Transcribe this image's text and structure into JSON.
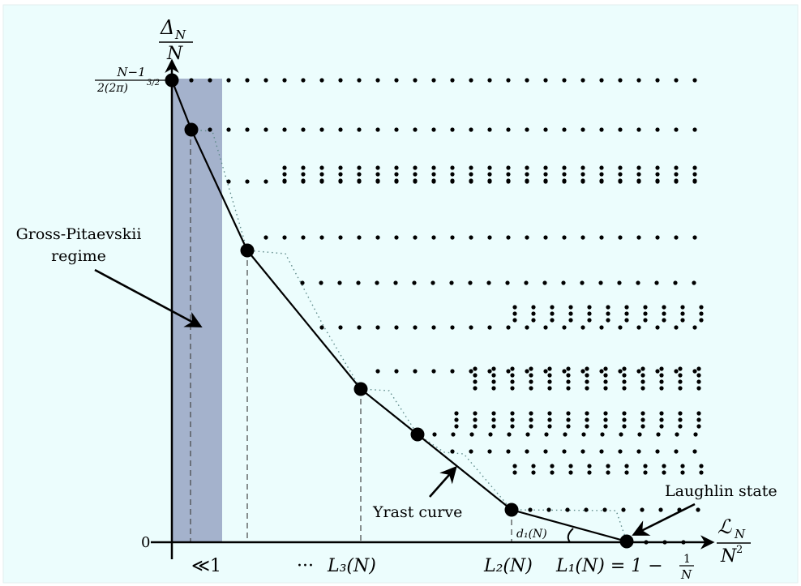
{
  "colors": {
    "background": "#ecfdfd",
    "regime_fill": "#a4b2cc",
    "ink": "#000000",
    "dotted_path": "#5f8a8a"
  },
  "axes": {
    "y_label_num": "Δ",
    "y_label_sub": "N",
    "y_label_den": "N",
    "x_label_num": "ℒ",
    "x_label_sub": "N",
    "x_label_den": "N",
    "x_label_den_sup": "2",
    "y_top_num": "N−1",
    "y_top_den": "2(2π)",
    "y_top_den_sup": "3/2",
    "y_zero": "0"
  },
  "x_ticks": {
    "much_less": "≪1",
    "dots": "···",
    "l3": "L₃(N)",
    "l2": "L₂(N)",
    "l1_left": "L₁(N) = 1 −",
    "l1_frac_num": "1",
    "l1_frac_den": "N"
  },
  "annotations": {
    "gp_line1": "Gross-Pitaevskii",
    "gp_line2": "regime",
    "yrast": "Yrast curve",
    "laughlin": "Laughlin state",
    "d1": "d₁(N)"
  }
}
